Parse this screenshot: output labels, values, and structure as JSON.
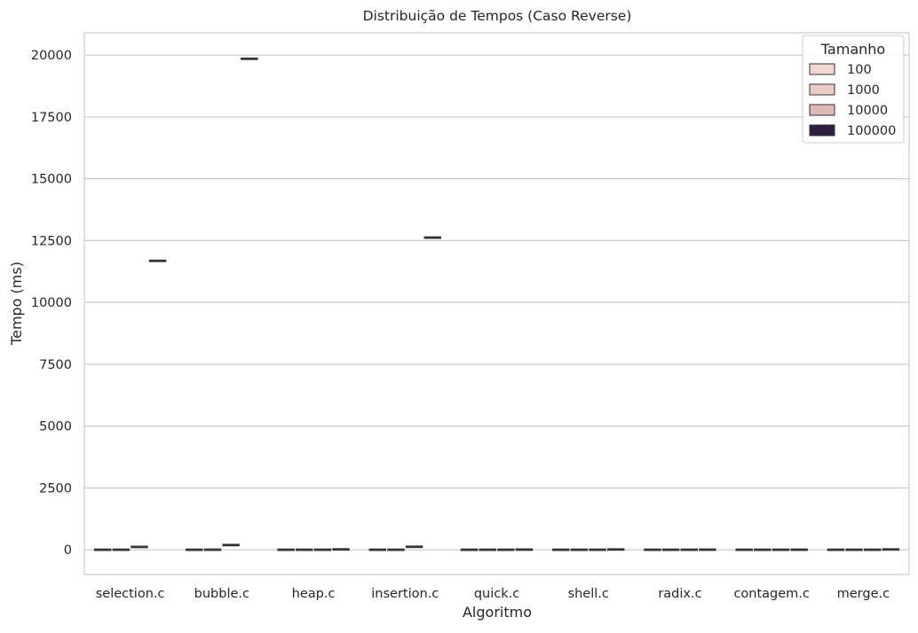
{
  "chart_data": {
    "type": "box",
    "title": "Distribuição de Tempos (Caso Reverse)",
    "xlabel": "Algoritmo",
    "ylabel": "Tempo (ms)",
    "ylim": [
      -1000,
      20900
    ],
    "yticks": [
      0,
      2500,
      5000,
      7500,
      10000,
      12500,
      15000,
      17500,
      20000
    ],
    "grid": "horizontal",
    "legend_position": "top-right",
    "categories": [
      "selection.c",
      "bubble.c",
      "heap.c",
      "insertion.c",
      "quick.c",
      "shell.c",
      "radix.c",
      "contagem.c",
      "merge.c"
    ],
    "legend": {
      "title": "Tamanho",
      "entries": [
        {
          "label": "100",
          "color": "#f1d7d2"
        },
        {
          "label": "1000",
          "color": "#ebcdc8"
        },
        {
          "label": "10000",
          "color": "#dfb9b5"
        },
        {
          "label": "100000",
          "color": "#2d1e3e"
        }
      ]
    },
    "series": [
      {
        "name": "100",
        "values": [
          0.02,
          0.03,
          0.01,
          0.01,
          0.01,
          0.01,
          0.01,
          0.01,
          0.01
        ]
      },
      {
        "name": "1000",
        "values": [
          1.2,
          2.0,
          0.1,
          1.0,
          0.05,
          0.05,
          0.03,
          0.02,
          0.08
        ]
      },
      {
        "name": "10000",
        "values": [
          115,
          190,
          1.2,
          120,
          0.5,
          0.9,
          0.3,
          0.2,
          1.0
        ]
      },
      {
        "name": "100000",
        "values": [
          11680,
          19850,
          15,
          12620,
          6,
          11,
          3,
          2,
          12
        ]
      }
    ]
  }
}
